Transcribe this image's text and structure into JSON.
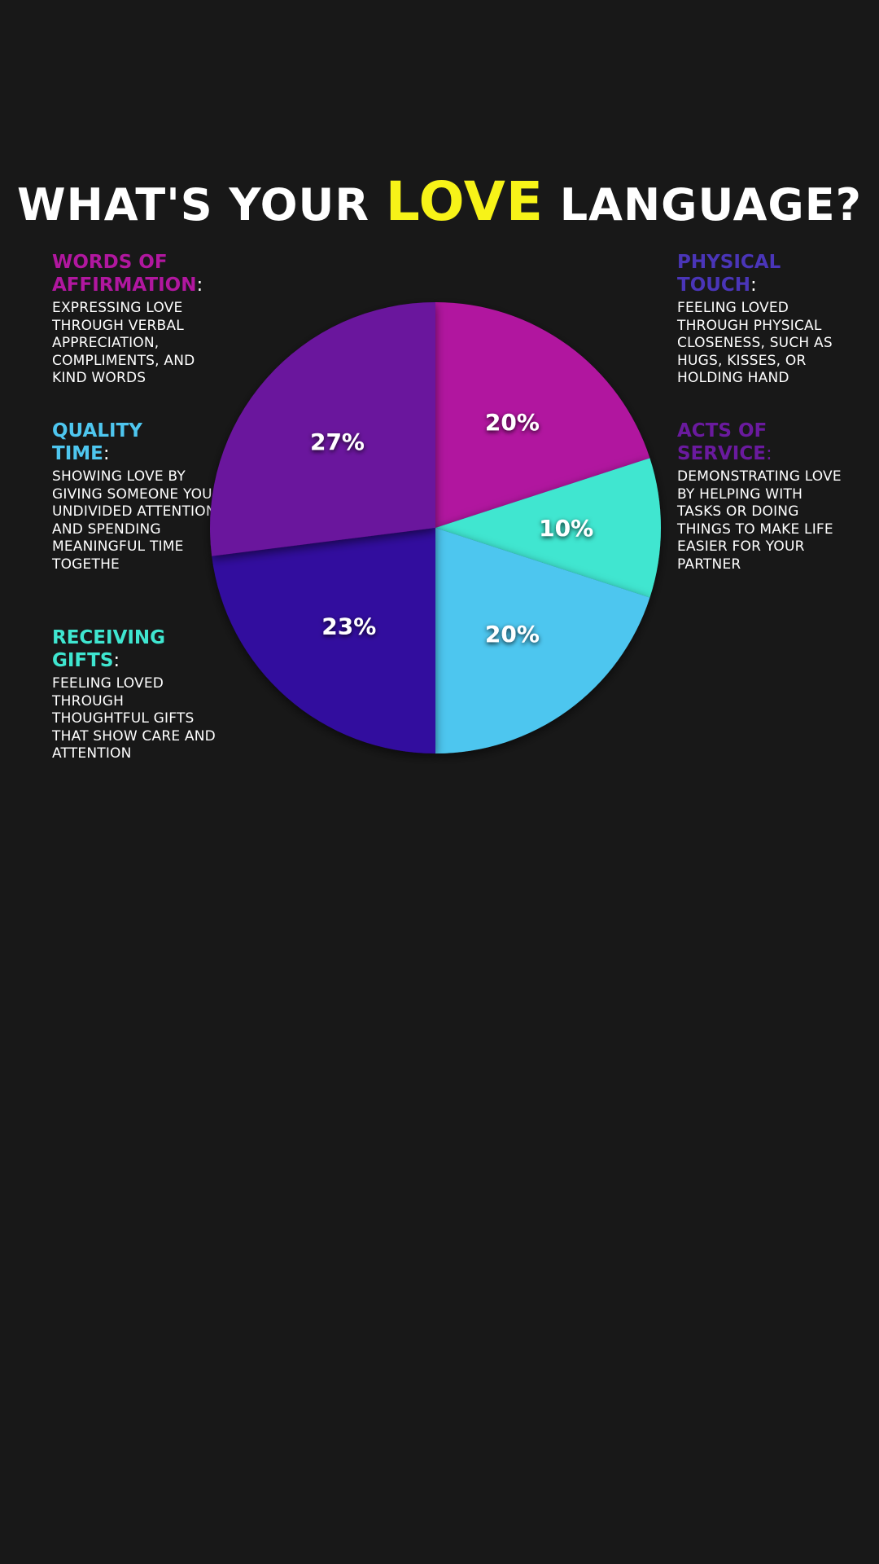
{
  "title": {
    "before": "WHAT'S YOUR ",
    "accent": "LOVE",
    "after": " LANGUAGE?"
  },
  "colors": {
    "background": "#181818",
    "accent": "#f7f318"
  },
  "legend": [
    {
      "heading_line1": "WORDS OF",
      "heading_line2": "AFFIRMATION",
      "colon": ":",
      "color": "#b1179f",
      "description": "EXPRESSING LOVE THROUGH VERBAL APPRECIATION, COMPLIMENTS, AND KIND WORDS"
    },
    {
      "heading_line1": "QUALITY",
      "heading_line2": "TIME",
      "colon": ":",
      "color": "#4ec6ef",
      "description": "SHOWING LOVE BY GIVING SOMEONE YOUR UNDIVIDED ATTENTION AND SPENDING MEANINGFUL TIME TOGETHE"
    },
    {
      "heading_line1": "RECEIVING",
      "heading_line2": "GIFTS",
      "colon": ":",
      "color": "#3fe6d0",
      "description": "FEELING LOVED THROUGH THOUGHTFUL GIFTS THAT SHOW CARE AND ATTENTION"
    },
    {
      "heading_line1": "PHYSICAL",
      "heading_line2": "TOUCH",
      "colon": ":",
      "color": "#4a35b8",
      "description": "FEELING LOVED THROUGH PHYSICAL CLOSENESS, SUCH AS HUGS, KISSES, OR HOLDING HAND"
    },
    {
      "heading_line1": "ACTS OF",
      "heading_line2": "SERVICE",
      "colon": ":",
      "color": "#6a1a9e",
      "description": "DEMONSTRATING LOVE BY HELPING WITH TASKS OR DOING THINGS TO MAKE LIFE EASIER FOR YOUR PARTNER"
    }
  ],
  "chart_data": {
    "type": "pie",
    "slices": [
      {
        "label": "20%",
        "value": 20,
        "color": "#b1179f"
      },
      {
        "label": "10%",
        "value": 10,
        "color": "#3fe6d0"
      },
      {
        "label": "20%",
        "value": 20,
        "color": "#4ec6ef"
      },
      {
        "label": "23%",
        "value": 23,
        "color": "#33089e"
      },
      {
        "label": "27%",
        "value": 27,
        "color": "#6a129d"
      }
    ],
    "title": "WHAT'S YOUR LOVE LANGUAGE?",
    "legend_placement": "sides"
  }
}
